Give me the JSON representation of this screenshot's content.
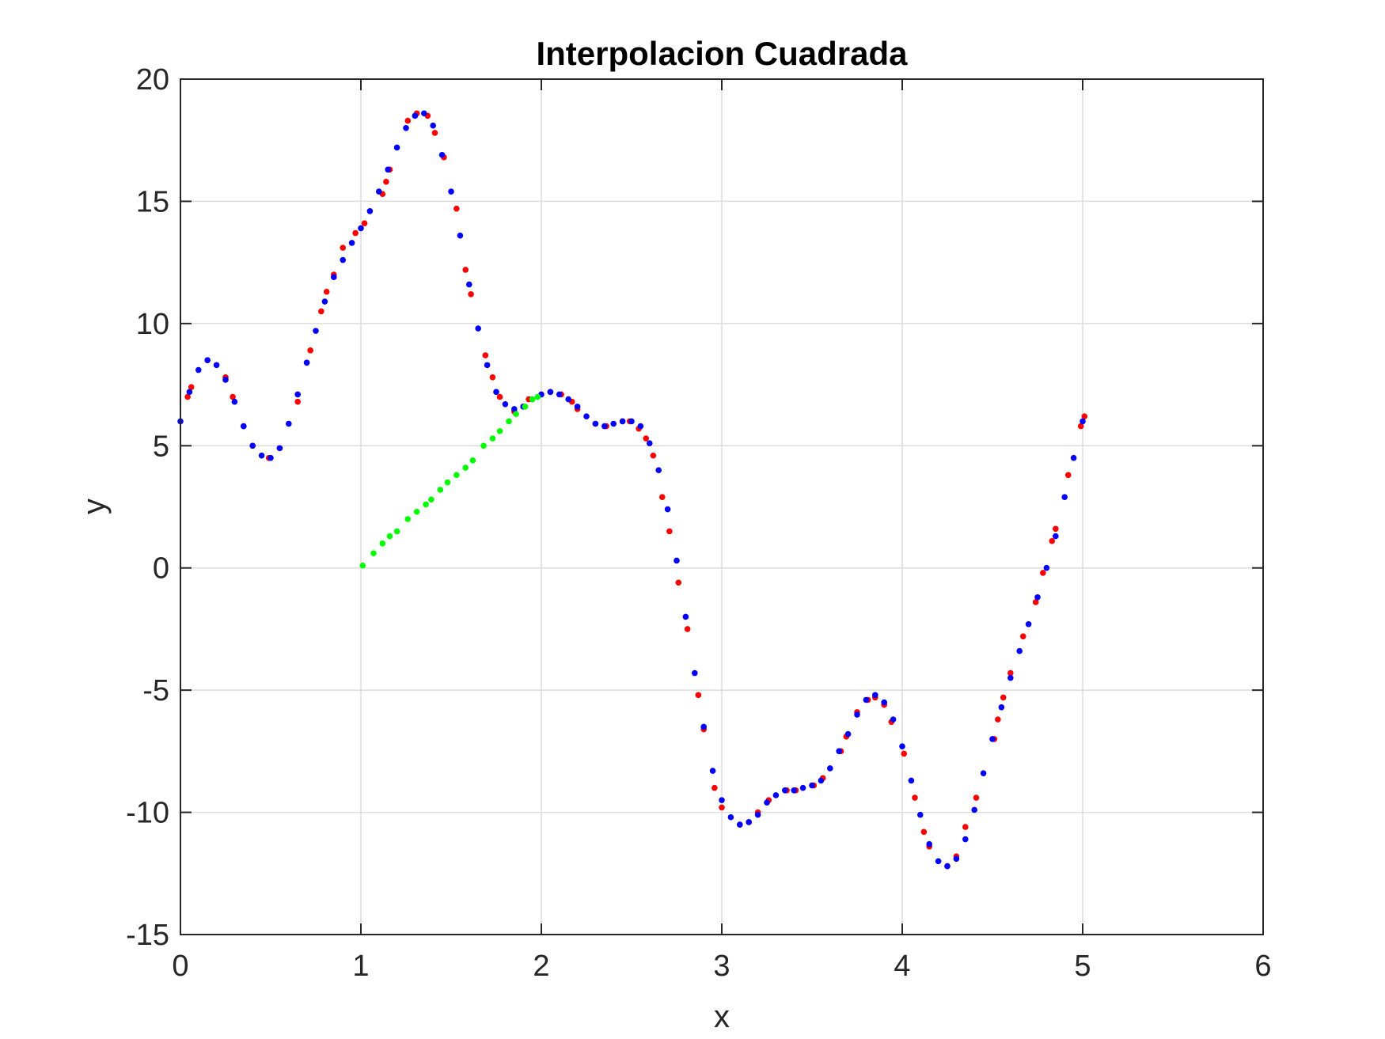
{
  "chart_data": {
    "type": "scatter",
    "title": "Interpolacion Cuadrada",
    "xlabel": "x",
    "ylabel": "y",
    "xlim": [
      0,
      6
    ],
    "ylim": [
      -15,
      20
    ],
    "xticks": [
      0,
      1,
      2,
      3,
      4,
      5,
      6
    ],
    "xtick_labels": [
      "0",
      "1",
      "2",
      "3",
      "4",
      "5",
      "6"
    ],
    "yticks": [
      -15,
      -10,
      -5,
      0,
      5,
      10,
      15,
      20
    ],
    "ytick_labels": [
      "-15",
      "-10",
      "-5",
      "0",
      "5",
      "10",
      "15",
      "20"
    ],
    "grid": true,
    "legend": "none",
    "series": [
      {
        "color": "#ff0000",
        "marker": "dot",
        "points": [
          [
            0.04,
            7.0
          ],
          [
            0.06,
            7.4
          ],
          [
            0.15,
            8.5
          ],
          [
            0.25,
            7.8
          ],
          [
            0.29,
            7.0
          ],
          [
            0.35,
            5.8
          ],
          [
            0.4,
            5.0
          ],
          [
            0.49,
            4.5
          ],
          [
            0.55,
            4.9
          ],
          [
            0.65,
            6.8
          ],
          [
            0.7,
            8.4
          ],
          [
            0.72,
            8.9
          ],
          [
            0.78,
            10.5
          ],
          [
            0.81,
            11.3
          ],
          [
            0.85,
            12.0
          ],
          [
            0.9,
            13.1
          ],
          [
            0.97,
            13.7
          ],
          [
            1.02,
            14.1
          ],
          [
            1.12,
            15.3
          ],
          [
            1.14,
            15.8
          ],
          [
            1.16,
            16.3
          ],
          [
            1.26,
            18.3
          ],
          [
            1.31,
            18.6
          ],
          [
            1.37,
            18.5
          ],
          [
            1.41,
            17.8
          ],
          [
            1.46,
            16.8
          ],
          [
            1.53,
            14.7
          ],
          [
            1.58,
            12.2
          ],
          [
            1.61,
            11.2
          ],
          [
            1.69,
            8.7
          ],
          [
            1.73,
            7.8
          ],
          [
            1.77,
            7.0
          ],
          [
            1.85,
            6.4
          ],
          [
            1.9,
            6.6
          ],
          [
            1.93,
            6.9
          ],
          [
            2.05,
            7.2
          ],
          [
            2.11,
            7.1
          ],
          [
            2.17,
            6.8
          ],
          [
            2.2,
            6.5
          ],
          [
            2.3,
            5.9
          ],
          [
            2.36,
            5.8
          ],
          [
            2.45,
            6.0
          ],
          [
            2.49,
            6.0
          ],
          [
            2.54,
            5.7
          ],
          [
            2.58,
            5.3
          ],
          [
            2.62,
            4.6
          ],
          [
            2.67,
            2.9
          ],
          [
            2.71,
            1.5
          ],
          [
            2.76,
            -0.6
          ],
          [
            2.81,
            -2.5
          ],
          [
            2.87,
            -5.2
          ],
          [
            2.9,
            -6.6
          ],
          [
            2.96,
            -9.0
          ],
          [
            3.0,
            -9.8
          ],
          [
            3.1,
            -10.5
          ],
          [
            3.15,
            -10.4
          ],
          [
            3.2,
            -10.0
          ],
          [
            3.26,
            -9.5
          ],
          [
            3.36,
            -9.1
          ],
          [
            3.41,
            -9.1
          ],
          [
            3.51,
            -8.9
          ],
          [
            3.56,
            -8.6
          ],
          [
            3.66,
            -7.5
          ],
          [
            3.69,
            -6.9
          ],
          [
            3.75,
            -5.9
          ],
          [
            3.81,
            -5.4
          ],
          [
            3.85,
            -5.3
          ],
          [
            3.9,
            -5.6
          ],
          [
            3.94,
            -6.3
          ],
          [
            4.01,
            -7.6
          ],
          [
            4.07,
            -9.4
          ],
          [
            4.12,
            -10.8
          ],
          [
            4.15,
            -11.4
          ],
          [
            4.25,
            -12.2
          ],
          [
            4.3,
            -11.8
          ],
          [
            4.35,
            -10.6
          ],
          [
            4.41,
            -9.4
          ],
          [
            4.51,
            -7.0
          ],
          [
            4.53,
            -6.2
          ],
          [
            4.56,
            -5.3
          ],
          [
            4.6,
            -4.3
          ],
          [
            4.67,
            -2.8
          ],
          [
            4.74,
            -1.4
          ],
          [
            4.78,
            -0.2
          ],
          [
            4.83,
            1.1
          ],
          [
            4.85,
            1.6
          ],
          [
            4.92,
            3.8
          ],
          [
            4.99,
            5.8
          ],
          [
            5.01,
            6.2
          ]
        ]
      },
      {
        "color": "#0000ff",
        "marker": "dot",
        "points": [
          [
            0.0,
            6.0
          ],
          [
            0.05,
            7.2
          ],
          [
            0.1,
            8.1
          ],
          [
            0.15,
            8.5
          ],
          [
            0.2,
            8.3
          ],
          [
            0.25,
            7.7
          ],
          [
            0.3,
            6.8
          ],
          [
            0.35,
            5.8
          ],
          [
            0.4,
            5.0
          ],
          [
            0.45,
            4.6
          ],
          [
            0.5,
            4.5
          ],
          [
            0.55,
            4.9
          ],
          [
            0.6,
            5.9
          ],
          [
            0.65,
            7.1
          ],
          [
            0.7,
            8.4
          ],
          [
            0.75,
            9.7
          ],
          [
            0.8,
            10.9
          ],
          [
            0.85,
            11.9
          ],
          [
            0.9,
            12.6
          ],
          [
            0.95,
            13.3
          ],
          [
            1.0,
            13.9
          ],
          [
            1.05,
            14.6
          ],
          [
            1.1,
            15.4
          ],
          [
            1.15,
            16.3
          ],
          [
            1.2,
            17.2
          ],
          [
            1.25,
            18.0
          ],
          [
            1.3,
            18.5
          ],
          [
            1.35,
            18.6
          ],
          [
            1.4,
            18.1
          ],
          [
            1.45,
            16.9
          ],
          [
            1.5,
            15.4
          ],
          [
            1.55,
            13.6
          ],
          [
            1.6,
            11.6
          ],
          [
            1.65,
            9.8
          ],
          [
            1.7,
            8.3
          ],
          [
            1.75,
            7.2
          ],
          [
            1.8,
            6.7
          ],
          [
            1.85,
            6.5
          ],
          [
            1.9,
            6.6
          ],
          [
            1.95,
            6.9
          ],
          [
            2.0,
            7.1
          ],
          [
            2.05,
            7.2
          ],
          [
            2.1,
            7.1
          ],
          [
            2.15,
            6.9
          ],
          [
            2.2,
            6.6
          ],
          [
            2.25,
            6.2
          ],
          [
            2.3,
            5.9
          ],
          [
            2.35,
            5.8
          ],
          [
            2.4,
            5.9
          ],
          [
            2.45,
            6.0
          ],
          [
            2.5,
            6.0
          ],
          [
            2.55,
            5.8
          ],
          [
            2.6,
            5.1
          ],
          [
            2.65,
            4.0
          ],
          [
            2.7,
            2.4
          ],
          [
            2.75,
            0.3
          ],
          [
            2.8,
            -2.0
          ],
          [
            2.85,
            -4.3
          ],
          [
            2.9,
            -6.5
          ],
          [
            2.95,
            -8.3
          ],
          [
            3.0,
            -9.5
          ],
          [
            3.05,
            -10.2
          ],
          [
            3.1,
            -10.5
          ],
          [
            3.15,
            -10.4
          ],
          [
            3.2,
            -10.1
          ],
          [
            3.25,
            -9.6
          ],
          [
            3.3,
            -9.3
          ],
          [
            3.35,
            -9.1
          ],
          [
            3.4,
            -9.1
          ],
          [
            3.45,
            -9.0
          ],
          [
            3.5,
            -8.9
          ],
          [
            3.55,
            -8.7
          ],
          [
            3.6,
            -8.2
          ],
          [
            3.65,
            -7.5
          ],
          [
            3.7,
            -6.8
          ],
          [
            3.75,
            -6.0
          ],
          [
            3.8,
            -5.4
          ],
          [
            3.85,
            -5.2
          ],
          [
            3.9,
            -5.5
          ],
          [
            3.95,
            -6.2
          ],
          [
            4.0,
            -7.3
          ],
          [
            4.05,
            -8.7
          ],
          [
            4.1,
            -10.1
          ],
          [
            4.15,
            -11.3
          ],
          [
            4.2,
            -12.0
          ],
          [
            4.25,
            -12.2
          ],
          [
            4.3,
            -11.9
          ],
          [
            4.35,
            -11.1
          ],
          [
            4.4,
            -9.9
          ],
          [
            4.45,
            -8.4
          ],
          [
            4.5,
            -7.0
          ],
          [
            4.55,
            -5.7
          ],
          [
            4.6,
            -4.5
          ],
          [
            4.65,
            -3.4
          ],
          [
            4.7,
            -2.3
          ],
          [
            4.75,
            -1.2
          ],
          [
            4.8,
            0.0
          ],
          [
            4.85,
            1.3
          ],
          [
            4.9,
            2.9
          ],
          [
            4.95,
            4.5
          ],
          [
            5.0,
            6.0
          ]
        ]
      },
      {
        "color": "#00ff00",
        "marker": "dot",
        "points": [
          [
            1.01,
            0.1
          ],
          [
            1.07,
            0.6
          ],
          [
            1.12,
            1.0
          ],
          [
            1.16,
            1.3
          ],
          [
            1.2,
            1.5
          ],
          [
            1.26,
            2.0
          ],
          [
            1.31,
            2.3
          ],
          [
            1.36,
            2.6
          ],
          [
            1.39,
            2.8
          ],
          [
            1.44,
            3.2
          ],
          [
            1.48,
            3.5
          ],
          [
            1.53,
            3.8
          ],
          [
            1.58,
            4.1
          ],
          [
            1.62,
            4.4
          ],
          [
            1.68,
            5.0
          ],
          [
            1.73,
            5.3
          ],
          [
            1.77,
            5.6
          ],
          [
            1.82,
            6.0
          ],
          [
            1.86,
            6.3
          ],
          [
            1.91,
            6.6
          ],
          [
            1.95,
            6.9
          ],
          [
            1.98,
            7.0
          ]
        ]
      }
    ]
  }
}
